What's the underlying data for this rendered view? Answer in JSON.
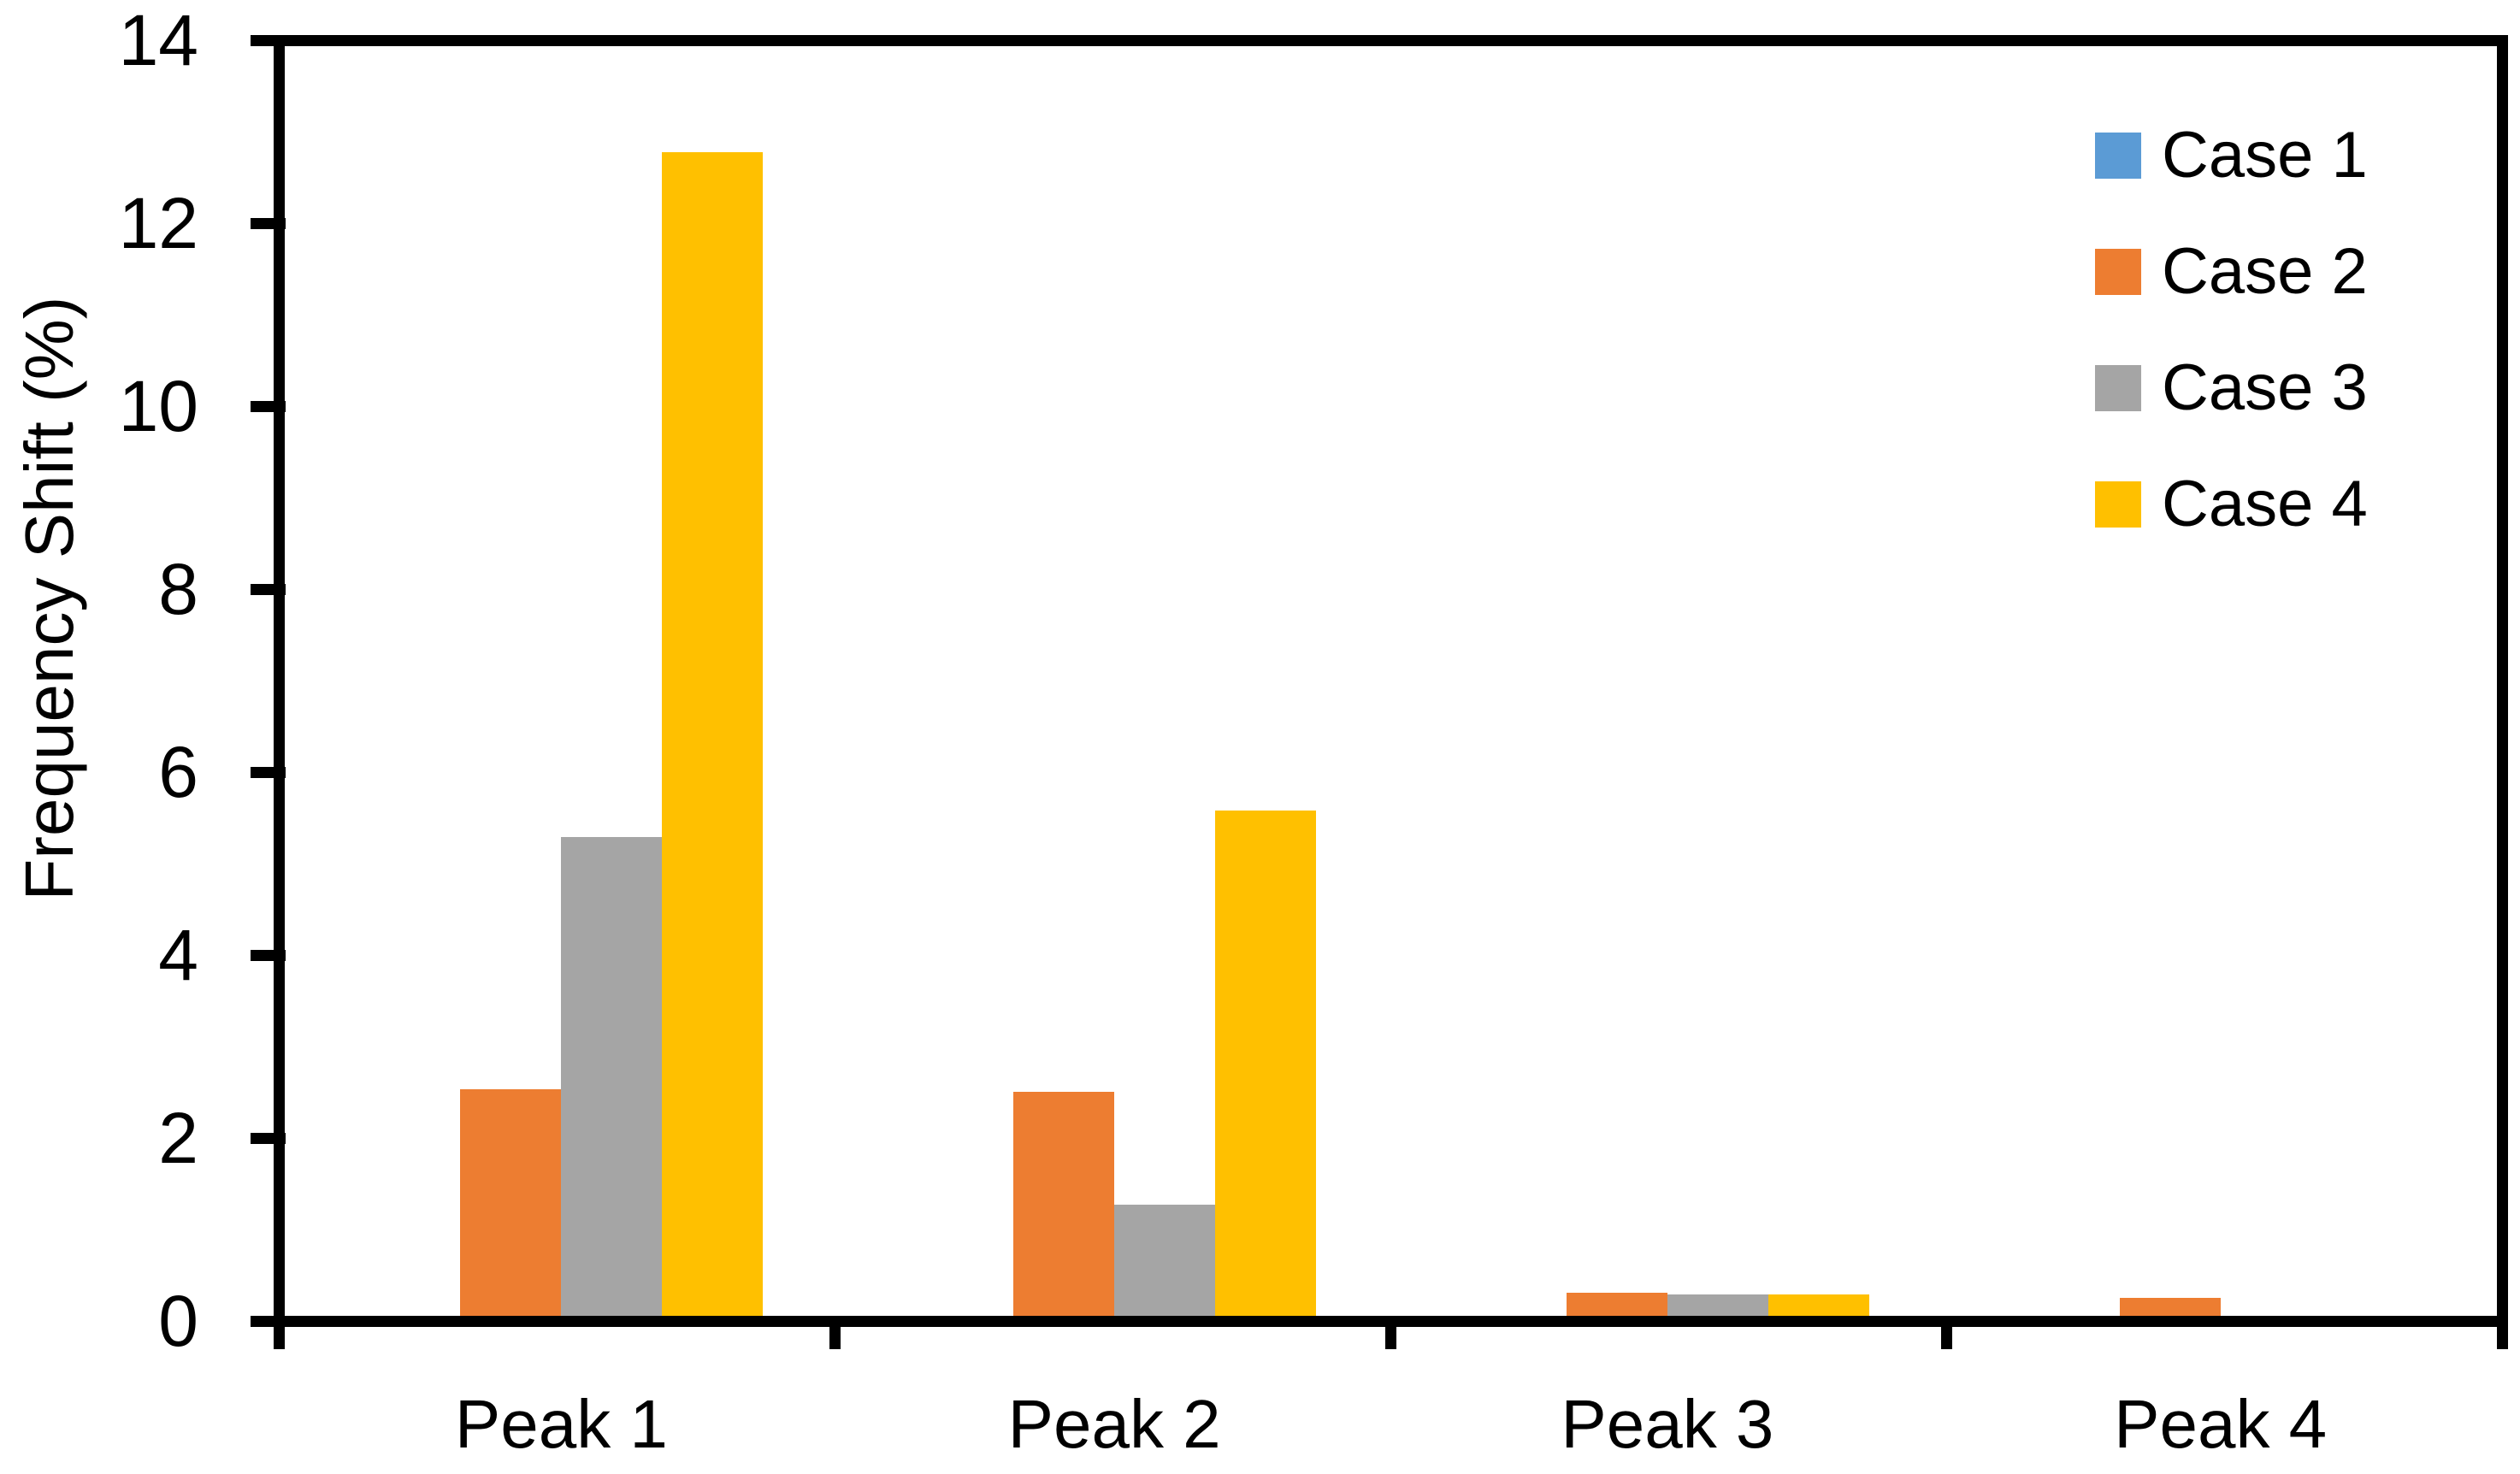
{
  "chart_data": {
    "type": "bar",
    "title": "",
    "categories": [
      "Peak 1",
      "Peak 2",
      "Peak 3",
      "Peak 4"
    ],
    "series": [
      {
        "name": "Case 1",
        "color": "#5B9BD5",
        "values": [
          0,
          0,
          0,
          0
        ]
      },
      {
        "name": "Case 2",
        "color": "#ED7D31",
        "values": [
          2.5,
          2.47,
          0.25,
          0.2
        ]
      },
      {
        "name": "Case 3",
        "color": "#A5A5A5",
        "values": [
          5.28,
          1.23,
          0.24,
          0
        ]
      },
      {
        "name": "Case 4",
        "color": "#FFC000",
        "values": [
          12.83,
          5.57,
          0.24,
          0
        ]
      }
    ],
    "xlabel": "",
    "ylabel": "Frequency Shift (%)",
    "ylim": [
      0,
      14
    ],
    "ytick_interval": 2,
    "yticks": [
      0,
      2,
      4,
      6,
      8,
      10,
      12,
      14
    ],
    "grid": false,
    "legend_position": "inside-top-right",
    "axis_color": "#000000",
    "background_color": "#FFFFFF"
  }
}
